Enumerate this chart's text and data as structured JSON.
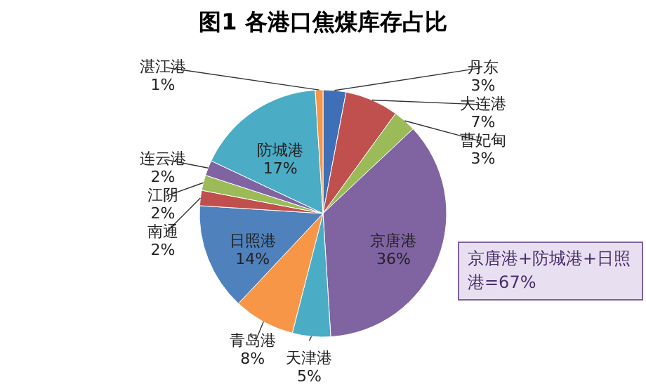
{
  "chart_data": {
    "type": "pie",
    "title": "图1 各港口焦煤库存占比",
    "categories": [
      "丹东",
      "大连港",
      "曹妃甸",
      "京唐港",
      "天津港",
      "青岛港",
      "日照港",
      "南通",
      "江阴",
      "连云港",
      "防城港",
      "湛江港"
    ],
    "values": [
      3,
      7,
      3,
      36,
      5,
      8,
      14,
      2,
      2,
      2,
      17,
      1
    ],
    "value_labels": [
      "3%",
      "7%",
      "3%",
      "36%",
      "5%",
      "8%",
      "14%",
      "2%",
      "2%",
      "2%",
      "17%",
      "1%"
    ],
    "colors": [
      "#3f6fb6",
      "#c0504d",
      "#9bbb59",
      "#8064a2",
      "#4bacc6",
      "#f79646",
      "#4f81bd",
      "#c0504d",
      "#9bbb59",
      "#8064a2",
      "#4bacc6",
      "#f79646"
    ],
    "annotations": [
      "京唐港+防城港+日照港=67%"
    ]
  }
}
